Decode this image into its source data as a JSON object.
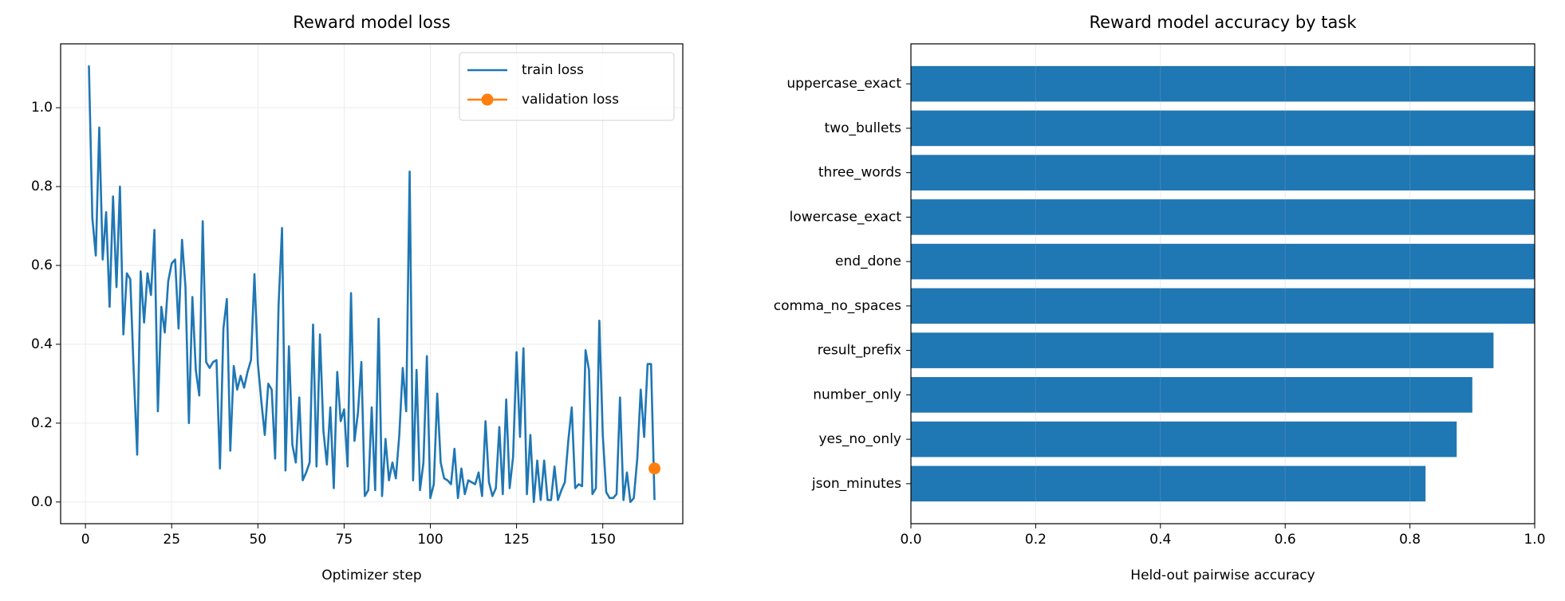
{
  "chart_data": [
    {
      "type": "line",
      "title": "Reward model loss",
      "xlabel": "Optimizer step",
      "xlim": [
        -7.2,
        173.2
      ],
      "xticks": [
        0,
        25,
        50,
        75,
        100,
        125,
        150
      ],
      "ylim": [
        -0.055,
        1.162
      ],
      "yticks": [
        {
          "value": 0,
          "label": "0.0"
        },
        {
          "value": 0.2,
          "label": "0.2"
        },
        {
          "value": 0.4,
          "label": "0.4"
        },
        {
          "value": 0.6,
          "label": "0.6"
        },
        {
          "value": 0.8,
          "label": "0.8"
        },
        {
          "value": 1.0,
          "label": "1.0"
        }
      ],
      "grid": true,
      "legend": "upper right",
      "series": [
        {
          "name": "train loss",
          "color": "#1f77b4",
          "x": [
            1,
            2,
            3,
            4,
            5,
            6,
            7,
            8,
            9,
            10,
            11,
            12,
            13,
            14,
            15,
            16,
            17,
            18,
            19,
            20,
            21,
            22,
            23,
            24,
            25,
            26,
            27,
            28,
            29,
            30,
            31,
            32,
            33,
            34,
            35,
            36,
            37,
            38,
            39,
            40,
            41,
            42,
            43,
            44,
            45,
            46,
            47,
            48,
            49,
            50,
            51,
            52,
            53,
            54,
            55,
            56,
            57,
            58,
            59,
            60,
            61,
            62,
            63,
            64,
            65,
            66,
            67,
            68,
            69,
            70,
            71,
            72,
            73,
            74,
            75,
            76,
            77,
            78,
            79,
            80,
            81,
            82,
            83,
            84,
            85,
            86,
            87,
            88,
            89,
            90,
            91,
            92,
            93,
            94,
            95,
            96,
            97,
            98,
            99,
            100,
            101,
            102,
            103,
            104,
            105,
            106,
            107,
            108,
            109,
            110,
            111,
            112,
            113,
            114,
            115,
            116,
            117,
            118,
            119,
            120,
            121,
            122,
            123,
            124,
            125,
            126,
            127,
            128,
            129,
            130,
            131,
            132,
            133,
            134,
            135,
            136,
            137,
            138,
            139,
            140,
            141,
            142,
            143,
            144,
            145,
            146,
            147,
            148,
            149,
            150,
            151,
            152,
            153,
            154,
            155,
            156,
            157,
            158,
            159,
            160,
            161,
            162,
            163,
            164,
            165
          ],
          "values": [
            1.107,
            0.72,
            0.625,
            0.95,
            0.615,
            0.735,
            0.495,
            0.775,
            0.545,
            0.8,
            0.425,
            0.58,
            0.565,
            0.33,
            0.12,
            0.585,
            0.455,
            0.58,
            0.525,
            0.69,
            0.23,
            0.495,
            0.43,
            0.56,
            0.605,
            0.615,
            0.44,
            0.665,
            0.545,
            0.2,
            0.52,
            0.335,
            0.27,
            0.712,
            0.355,
            0.34,
            0.355,
            0.36,
            0.085,
            0.44,
            0.515,
            0.13,
            0.345,
            0.285,
            0.32,
            0.29,
            0.33,
            0.36,
            0.578,
            0.35,
            0.255,
            0.17,
            0.3,
            0.285,
            0.11,
            0.5,
            0.695,
            0.08,
            0.395,
            0.145,
            0.1,
            0.265,
            0.055,
            0.075,
            0.1,
            0.45,
            0.09,
            0.425,
            0.18,
            0.095,
            0.24,
            0.035,
            0.33,
            0.205,
            0.235,
            0.09,
            0.53,
            0.155,
            0.225,
            0.355,
            0.015,
            0.03,
            0.24,
            0.03,
            0.465,
            0.015,
            0.16,
            0.055,
            0.1,
            0.06,
            0.17,
            0.34,
            0.23,
            0.838,
            0.055,
            0.335,
            0.03,
            0.1,
            0.37,
            0.01,
            0.045,
            0.275,
            0.1,
            0.06,
            0.055,
            0.045,
            0.135,
            0.01,
            0.085,
            0.02,
            0.055,
            0.05,
            0.045,
            0.075,
            0.015,
            0.205,
            0.05,
            0.015,
            0.035,
            0.19,
            0.02,
            0.26,
            0.035,
            0.115,
            0.38,
            0.165,
            0.39,
            0.02,
            0.17,
            0.0,
            0.105,
            0.005,
            0.105,
            0.005,
            0.005,
            0.09,
            0.005,
            0.03,
            0.05,
            0.155,
            0.24,
            0.035,
            0.045,
            0.04,
            0.385,
            0.335,
            0.02,
            0.035,
            0.46,
            0.17,
            0.025,
            0.01,
            0.01,
            0.02,
            0.265,
            0.005,
            0.075,
            0.0,
            0.01,
            0.11,
            0.285,
            0.165,
            0.35,
            0.35,
            0.005
          ]
        },
        {
          "name": "validation loss",
          "color": "#ff7f0e",
          "marker": "o",
          "x": [
            165
          ],
          "values": [
            0.085
          ]
        }
      ]
    },
    {
      "type": "bar",
      "orientation": "horizontal",
      "title": "Reward model accuracy by task",
      "xlabel": "Held-out pairwise accuracy",
      "categories": [
        "uppercase_exact",
        "two_bullets",
        "three_words",
        "lowercase_exact",
        "end_done",
        "comma_no_spaces",
        "result_prefix",
        "number_only",
        "yes_no_only",
        "json_minutes"
      ],
      "values": [
        1.0,
        1.0,
        1.0,
        1.0,
        1.0,
        1.0,
        0.934,
        0.9,
        0.875,
        0.825
      ],
      "color": "#1f77b4",
      "xlim": [
        0,
        1
      ],
      "xticks": [
        {
          "value": 0,
          "label": "0.0"
        },
        {
          "value": 0.2,
          "label": "0.2"
        },
        {
          "value": 0.4,
          "label": "0.4"
        },
        {
          "value": 0.6,
          "label": "0.6"
        },
        {
          "value": 0.8,
          "label": "0.8"
        },
        {
          "value": 1.0,
          "label": "1.0"
        }
      ],
      "grid": true
    }
  ]
}
